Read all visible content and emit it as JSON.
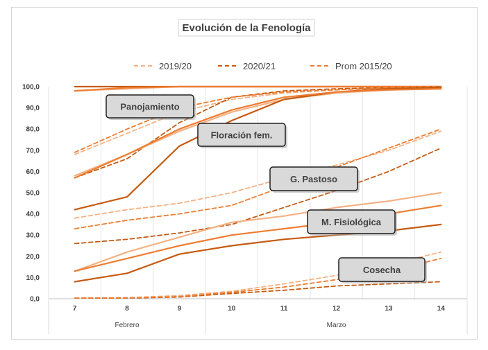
{
  "chart_data": {
    "type": "line",
    "title": "Evolución de la Fenología",
    "x": [
      "7",
      "8",
      "9",
      "10",
      "11",
      "12",
      "13",
      "14"
    ],
    "month_groups": [
      {
        "label": "Febrero",
        "start": 0,
        "end": 2
      },
      {
        "label": "Marzo",
        "start": 3,
        "end": 7
      }
    ],
    "ylim": [
      0,
      100
    ],
    "yticks": [
      "0,0",
      "10,0",
      "20,0",
      "30,0",
      "40,0",
      "50,0",
      "60,0",
      "70,0",
      "80,0",
      "90,0",
      "100,0"
    ],
    "legend": [
      {
        "name": "2019/20",
        "color": "#f4b183",
        "dash": "dashed"
      },
      {
        "name": "2020/21",
        "color": "#c55a11",
        "dash": "dashed"
      },
      {
        "name": "Prom 2015/20",
        "color": "#ed7d31",
        "dash": "dashed"
      }
    ],
    "legend_position": "top",
    "grid": "vertical",
    "series": [
      {
        "phase": "Panojamiento",
        "style": "solid",
        "color": "#f4b183",
        "values": [
          98,
          99,
          100,
          100,
          100,
          100,
          100,
          100
        ]
      },
      {
        "phase": "Panojamiento",
        "style": "solid",
        "color": "#c55a11",
        "values": [
          100,
          100,
          100,
          100,
          100,
          100,
          100,
          100
        ]
      },
      {
        "phase": "Panojamiento",
        "style": "solid",
        "color": "#ed7d31",
        "values": [
          98,
          99.5,
          100,
          100,
          100,
          100,
          100,
          100
        ]
      },
      {
        "phase": "Panojamiento",
        "style": "dashed",
        "color": "#f4b183",
        "values": [
          68,
          78,
          88,
          94,
          97,
          98.5,
          99.5,
          100
        ]
      },
      {
        "phase": "Panojamiento",
        "style": "dashed",
        "color": "#c55a11",
        "values": [
          57,
          66,
          83,
          95,
          98,
          99,
          99.5,
          100
        ]
      },
      {
        "phase": "Panojamiento",
        "style": "dashed",
        "color": "#ed7d31",
        "values": [
          69,
          80,
          90,
          95,
          97.5,
          98.5,
          99.5,
          100
        ]
      },
      {
        "phase": "Floración fem.",
        "style": "solid",
        "color": "#f4b183",
        "values": [
          58,
          68,
          79,
          88,
          94,
          97,
          98.5,
          99
        ]
      },
      {
        "phase": "Floración fem.",
        "style": "solid",
        "color": "#c55a11",
        "values": [
          42,
          48,
          72,
          84,
          94,
          97.5,
          99,
          99.5
        ]
      },
      {
        "phase": "Floración fem.",
        "style": "solid",
        "color": "#ed7d31",
        "values": [
          57,
          68,
          80,
          89,
          95,
          97.5,
          98.5,
          99
        ]
      },
      {
        "phase": "G. Pastoso",
        "style": "dashed",
        "color": "#f4b183",
        "values": [
          38,
          42,
          45,
          50,
          57,
          63,
          70,
          79
        ]
      },
      {
        "phase": "G. Pastoso",
        "style": "dashed",
        "color": "#c55a11",
        "values": [
          26,
          28,
          31,
          35,
          43,
          51,
          60,
          71
        ]
      },
      {
        "phase": "G. Pastoso",
        "style": "dashed",
        "color": "#ed7d31",
        "values": [
          33,
          37,
          40,
          44,
          53,
          62,
          71,
          80
        ]
      },
      {
        "phase": "M. Fisiológica",
        "style": "solid",
        "color": "#f4b183",
        "values": [
          13,
          22,
          29,
          36,
          39,
          43,
          46,
          50
        ]
      },
      {
        "phase": "M. Fisiológica",
        "style": "solid",
        "color": "#c55a11",
        "values": [
          8,
          12,
          21,
          25,
          28,
          30,
          32,
          35
        ]
      },
      {
        "phase": "M. Fisiológica",
        "style": "solid",
        "color": "#ed7d31",
        "values": [
          13,
          19,
          25,
          30,
          33,
          36,
          40,
          44
        ]
      },
      {
        "phase": "Cosecha",
        "style": "dashed",
        "color": "#f4b183",
        "values": [
          0.3,
          0.5,
          1.5,
          3.5,
          7,
          11,
          16,
          22
        ]
      },
      {
        "phase": "Cosecha",
        "style": "dashed",
        "color": "#c55a11",
        "values": [
          0.3,
          0.3,
          0.8,
          2.5,
          4,
          6,
          7,
          8
        ]
      },
      {
        "phase": "Cosecha",
        "style": "dashed",
        "color": "#ed7d31",
        "values": [
          0.3,
          0.4,
          1,
          3,
          5.5,
          9,
          13,
          19
        ]
      }
    ],
    "annotations": [
      "Panojamiento",
      "Floración fem.",
      "G. Pastoso",
      "M. Fisiológica",
      "Cosecha"
    ]
  }
}
